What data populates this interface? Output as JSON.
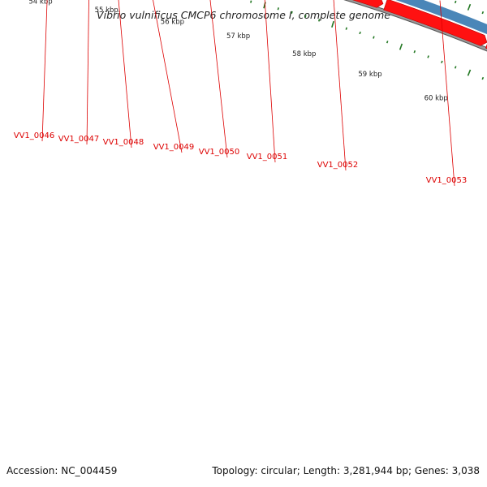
{
  "title": "Vibrio vulnificus CMCP6 chromosome I, complete genome",
  "accession": "Accession: NC_004459",
  "summary": "Topology: circular; Length: 3,281,944 bp; Genes: 3,038",
  "gene_labels": [
    "VV1_0046",
    "VV1_0047",
    "VV1_0048",
    "VV1_0049",
    "VV1_0050",
    "VV1_0051",
    "VV1_0052",
    "VV1_0053"
  ],
  "kbp_labels": [
    "54 kbp",
    "55 kbp",
    "56 kbp",
    "57 kbp",
    "58 kbp",
    "59 kbp",
    "60 kbp"
  ],
  "colors": {
    "arrow_red": "#ff1111",
    "backbone_gray": "#777777",
    "tick_green": "#227722",
    "label_red": "#dd0000",
    "gene_purple": "#7766dd",
    "gene_navy": "#1a1a80",
    "gene_gray": "#666666",
    "gene_olive": "#6e9a2a",
    "gene_steel": "#4a86b8"
  }
}
